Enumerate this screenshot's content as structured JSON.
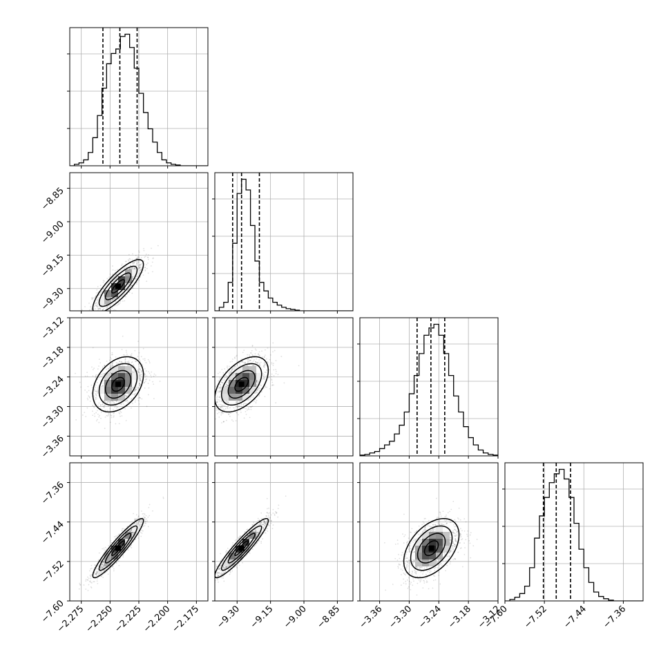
{
  "chart_data": {
    "type": "scatter",
    "subtype": "corner-plot",
    "grid": true,
    "axes_params": [
      {
        "range": [
          -2.285,
          -2.165
        ],
        "ticks": [
          -2.275,
          -2.25,
          -2.225,
          -2.2,
          -2.175
        ],
        "tick_labels": [
          "−2.275",
          "−2.250",
          "−2.225",
          "−2.200",
          "−2.175"
        ]
      },
      {
        "range": [
          -9.4,
          -8.78
        ],
        "ticks": [
          -9.3,
          -9.15,
          -9.0,
          -8.85
        ],
        "tick_labels": [
          "−9.30",
          "−9.15",
          "−9.00",
          "−8.85"
        ]
      },
      {
        "range": [
          -3.4,
          -3.12
        ],
        "ticks": [
          -3.36,
          -3.3,
          -3.24,
          -3.18,
          -3.12
        ],
        "tick_labels": [
          "−3.36",
          "−3.30",
          "−3.24",
          "−3.18",
          "−3.12"
        ]
      },
      {
        "range": [
          -7.6,
          -7.32
        ],
        "ticks": [
          -7.6,
          -7.52,
          -7.44,
          -7.36
        ],
        "tick_labels": [
          "−7.60",
          "−7.52",
          "−7.44",
          "−7.36"
        ]
      }
    ],
    "histograms": [
      {
        "param_index": 0,
        "bins_x": [
          -2.285,
          -2.281,
          -2.277,
          -2.273,
          -2.269,
          -2.265,
          -2.261,
          -2.257,
          -2.253,
          -2.249,
          -2.245,
          -2.241,
          -2.237,
          -2.233,
          -2.229,
          -2.225,
          -2.221,
          -2.217,
          -2.213,
          -2.209,
          -2.205,
          -2.201,
          -2.197,
          -2.193,
          -2.189,
          -2.185,
          -2.181,
          -2.177,
          -2.173,
          -2.169,
          -2.165
        ],
        "counts": [
          0,
          2,
          4,
          8,
          18,
          38,
          68,
          105,
          138,
          152,
          158,
          175,
          178,
          160,
          132,
          98,
          72,
          50,
          32,
          18,
          8,
          4,
          2,
          1,
          0,
          0,
          0,
          0,
          0,
          0
        ],
        "quantiles": [
          -2.2562,
          -2.2415,
          -2.2265
        ]
      },
      {
        "param_index": 1,
        "bins_x": [
          -9.4,
          -9.38,
          -9.36,
          -9.34,
          -9.32,
          -9.3,
          -9.28,
          -9.26,
          -9.24,
          -9.22,
          -9.2,
          -9.18,
          -9.16,
          -9.14,
          -9.12,
          -9.1,
          -9.08,
          -9.06,
          -9.04,
          -9.02,
          -9.0,
          -8.98,
          -8.96,
          -8.94,
          -8.92,
          -8.9,
          -8.88,
          -8.86,
          -8.84,
          -8.82,
          -8.8,
          -8.78
        ],
        "counts": [
          0,
          5,
          12,
          40,
          95,
          165,
          185,
          170,
          120,
          70,
          40,
          28,
          18,
          12,
          8,
          5,
          3,
          2,
          1,
          0,
          0,
          0,
          0,
          0,
          0,
          0,
          0,
          0,
          0,
          0,
          0
        ],
        "quantiles": [
          -9.32,
          -9.28,
          -9.2
        ]
      },
      {
        "param_index": 2,
        "bins_x": [
          -3.4,
          -3.39,
          -3.38,
          -3.37,
          -3.36,
          -3.35,
          -3.34,
          -3.33,
          -3.32,
          -3.31,
          -3.3,
          -3.29,
          -3.28,
          -3.27,
          -3.26,
          -3.25,
          -3.24,
          -3.23,
          -3.22,
          -3.21,
          -3.2,
          -3.19,
          -3.18,
          -3.17,
          -3.16,
          -3.15,
          -3.14,
          -3.13,
          -3.12
        ],
        "counts": [
          1,
          2,
          4,
          6,
          10,
          15,
          20,
          30,
          42,
          60,
          85,
          110,
          140,
          165,
          175,
          180,
          165,
          140,
          110,
          82,
          60,
          40,
          25,
          15,
          8,
          4,
          2,
          1
        ],
        "quantiles": [
          -3.284,
          -3.256,
          -3.228
        ]
      },
      {
        "param_index": 3,
        "bins_x": [
          -7.6,
          -7.59,
          -7.58,
          -7.57,
          -7.56,
          -7.55,
          -7.54,
          -7.53,
          -7.52,
          -7.51,
          -7.5,
          -7.49,
          -7.48,
          -7.47,
          -7.46,
          -7.45,
          -7.44,
          -7.43,
          -7.42,
          -7.41,
          -7.4,
          -7.39,
          -7.38,
          -7.37,
          -7.36,
          -7.35,
          -7.34,
          -7.33,
          -7.32
        ],
        "counts": [
          0,
          2,
          5,
          10,
          20,
          45,
          85,
          115,
          140,
          160,
          172,
          178,
          165,
          140,
          105,
          70,
          45,
          25,
          12,
          6,
          3,
          1,
          0,
          0,
          0,
          0,
          0,
          0
        ],
        "quantiles": [
          -7.522,
          -7.496,
          -7.467
        ]
      }
    ],
    "pairs": [
      {
        "row": 1,
        "col": 0,
        "center": [
          -2.243,
          -9.29
        ],
        "sigma": [
          0.011,
          0.06
        ],
        "rho": 0.82
      },
      {
        "row": 2,
        "col": 0,
        "center": [
          -2.243,
          -3.255
        ],
        "sigma": [
          0.011,
          0.028
        ],
        "rho": 0.35
      },
      {
        "row": 2,
        "col": 1,
        "center": [
          -9.28,
          -3.255
        ],
        "sigma": [
          0.06,
          0.028
        ],
        "rho": 0.5
      },
      {
        "row": 3,
        "col": 0,
        "center": [
          -2.243,
          -7.493
        ],
        "sigma": [
          0.011,
          0.03
        ],
        "rho": 0.93
      },
      {
        "row": 3,
        "col": 1,
        "center": [
          -9.28,
          -7.493
        ],
        "sigma": [
          0.06,
          0.03
        ],
        "rho": 0.93
      },
      {
        "row": 3,
        "col": 2,
        "center": [
          -3.255,
          -7.493
        ],
        "sigma": [
          0.028,
          0.03
        ],
        "rho": 0.45
      }
    ]
  }
}
